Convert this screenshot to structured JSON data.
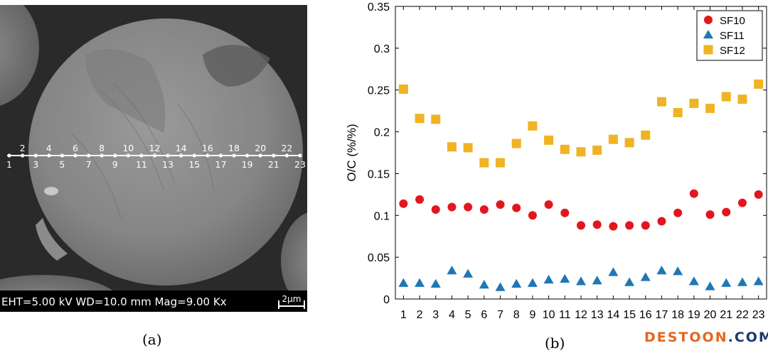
{
  "panel_a": {
    "caption": "(a)",
    "info_bar": "EHT=5.00 kV WD=10.0 mm Mag=9.00 Kx",
    "scale_bar_label": "2μm",
    "point_labels_top": [
      "2",
      "4",
      "6",
      "8",
      "10",
      "12",
      "14",
      "16",
      "18",
      "20",
      "22"
    ],
    "point_labels_bottom": [
      "1",
      "3",
      "5",
      "7",
      "9",
      "11",
      "13",
      "15",
      "17",
      "19",
      "21",
      "23"
    ]
  },
  "panel_b": {
    "caption": "(b)"
  },
  "watermark": {
    "main": "DESTOON",
    "dot": ".",
    "tld": "COM"
  },
  "chart_data": {
    "type": "scatter",
    "title": "",
    "xlabel": "",
    "ylabel": "O/C (%/%)",
    "x": [
      1,
      2,
      3,
      4,
      5,
      6,
      7,
      8,
      9,
      10,
      11,
      12,
      13,
      14,
      15,
      16,
      17,
      18,
      19,
      20,
      21,
      22,
      23
    ],
    "xlim": [
      0.5,
      23.5
    ],
    "ylim": [
      0,
      0.35
    ],
    "yticks": [
      "0",
      "0.05",
      "0.1",
      "0.15",
      "0.2",
      "0.25",
      "0.3",
      "0.35"
    ],
    "ytick_values": [
      0,
      0.05,
      0.1,
      0.15,
      0.2,
      0.25,
      0.3,
      0.35
    ],
    "xtick_labels": [
      "1",
      "2",
      "3",
      "4",
      "5",
      "6",
      "7",
      "8",
      "9",
      "10",
      "11",
      "12",
      "13",
      "14",
      "15",
      "16",
      "17",
      "18",
      "19",
      "20",
      "21",
      "22",
      "23"
    ],
    "grid": false,
    "legend_position": "top-right",
    "series": [
      {
        "name": "SF10",
        "marker": "circle",
        "color": "#e3161d",
        "values": [
          0.114,
          0.119,
          0.107,
          0.11,
          0.11,
          0.107,
          0.113,
          0.109,
          0.1,
          0.113,
          0.103,
          0.088,
          0.089,
          0.087,
          0.088,
          0.088,
          0.093,
          0.103,
          0.126,
          0.101,
          0.104,
          0.115,
          0.125
        ]
      },
      {
        "name": "SF11",
        "marker": "triangle",
        "color": "#1f77b4",
        "values": [
          0.019,
          0.019,
          0.018,
          0.034,
          0.03,
          0.017,
          0.014,
          0.018,
          0.019,
          0.023,
          0.024,
          0.021,
          0.022,
          0.032,
          0.02,
          0.026,
          0.034,
          0.033,
          0.021,
          0.015,
          0.019,
          0.02,
          0.021
        ]
      },
      {
        "name": "SF12",
        "marker": "square",
        "color": "#f0b323",
        "values": [
          0.251,
          0.216,
          0.215,
          0.182,
          0.181,
          0.163,
          0.163,
          0.186,
          0.207,
          0.19,
          0.179,
          0.176,
          0.178,
          0.191,
          0.187,
          0.196,
          0.236,
          0.223,
          0.234,
          0.228,
          0.242,
          0.239,
          0.257
        ]
      }
    ]
  }
}
